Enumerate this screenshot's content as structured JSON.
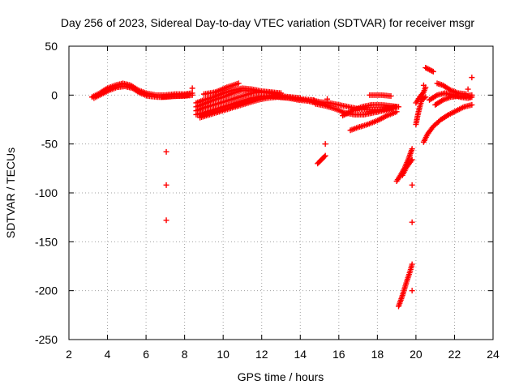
{
  "chart_data": {
    "type": "scatter",
    "title": "Day 256 of 2023, Sidereal Day-to-day VTEC variation (SDTVAR) for receiver msgr",
    "xlabel": "GPS time / hours",
    "ylabel": "SDTVAR / TECUs",
    "xlim": [
      2,
      24
    ],
    "ylim": [
      -250,
      50
    ],
    "xticks": [
      2,
      4,
      6,
      8,
      10,
      12,
      14,
      16,
      18,
      20,
      22,
      24
    ],
    "yticks": [
      -250,
      -200,
      -150,
      -100,
      -50,
      0,
      50
    ],
    "grid": true,
    "marker": "+",
    "series": [
      {
        "name": "SDTVAR",
        "color": "#ff0000",
        "tracks": [
          [
            [
              3.2,
              -2
            ],
            [
              3.6,
              2
            ],
            [
              4.0,
              7
            ],
            [
              4.4,
              10
            ],
            [
              4.8,
              12
            ],
            [
              5.2,
              10
            ],
            [
              5.6,
              5
            ],
            [
              6.0,
              2
            ],
            [
              6.5,
              0
            ],
            [
              7.0,
              0
            ],
            [
              7.5,
              1
            ],
            [
              8.0,
              1
            ],
            [
              8.4,
              2
            ]
          ],
          [
            [
              3.3,
              -3
            ],
            [
              3.7,
              1
            ],
            [
              4.1,
              5
            ],
            [
              4.5,
              8
            ],
            [
              4.9,
              9
            ],
            [
              5.3,
              7
            ],
            [
              5.7,
              2
            ],
            [
              6.1,
              -1
            ],
            [
              6.6,
              -2
            ],
            [
              7.0,
              -2
            ],
            [
              7.6,
              -1
            ],
            [
              8.2,
              0
            ]
          ],
          [
            [
              6.8,
              -2
            ],
            [
              7.4,
              -1
            ],
            [
              8.0,
              -1
            ],
            [
              8.4,
              0
            ]
          ],
          [
            [
              8.6,
              -8
            ],
            [
              9.0,
              -5
            ],
            [
              9.5,
              -2
            ],
            [
              10.0,
              2
            ],
            [
              10.5,
              5
            ],
            [
              11.0,
              7
            ],
            [
              11.5,
              6
            ],
            [
              12.0,
              4
            ],
            [
              12.5,
              3
            ],
            [
              13.0,
              2
            ]
          ],
          [
            [
              8.6,
              -12
            ],
            [
              9.0,
              -9
            ],
            [
              9.5,
              -5
            ],
            [
              10.0,
              -2
            ],
            [
              10.5,
              2
            ],
            [
              11.0,
              5
            ],
            [
              11.5,
              4
            ],
            [
              12.0,
              3
            ],
            [
              12.5,
              2
            ],
            [
              13.0,
              0
            ]
          ],
          [
            [
              8.6,
              -16
            ],
            [
              9.0,
              -13
            ],
            [
              9.5,
              -10
            ],
            [
              10.0,
              -7
            ],
            [
              10.5,
              -4
            ],
            [
              11.0,
              -1
            ],
            [
              11.5,
              2
            ],
            [
              12.0,
              3
            ],
            [
              12.5,
              2
            ],
            [
              13.0,
              -1
            ],
            [
              13.5,
              -2
            ],
            [
              14.0,
              -3
            ]
          ],
          [
            [
              8.6,
              -20
            ],
            [
              9.0,
              -18
            ],
            [
              9.5,
              -15
            ],
            [
              10.0,
              -12
            ],
            [
              10.5,
              -9
            ],
            [
              11.0,
              -6
            ],
            [
              11.5,
              -3
            ],
            [
              12.0,
              -1
            ],
            [
              12.5,
              -1
            ],
            [
              13.0,
              -2
            ],
            [
              13.5,
              -3
            ],
            [
              14.0,
              -4
            ],
            [
              14.6,
              -5
            ]
          ],
          [
            [
              8.8,
              -23
            ],
            [
              9.3,
              -20
            ],
            [
              9.8,
              -17
            ],
            [
              10.3,
              -14
            ],
            [
              10.8,
              -11
            ],
            [
              11.3,
              -8
            ],
            [
              11.8,
              -5
            ],
            [
              12.3,
              -3
            ],
            [
              12.8,
              -2
            ],
            [
              13.4,
              -3
            ],
            [
              13.9,
              -5
            ],
            [
              14.4,
              -6
            ],
            [
              14.8,
              -8
            ]
          ],
          [
            [
              9.0,
              1
            ],
            [
              9.6,
              3
            ],
            [
              10.2,
              8
            ],
            [
              10.8,
              12
            ]
          ],
          [
            [
              14.6,
              -5
            ],
            [
              15.0,
              -7
            ],
            [
              15.5,
              -8
            ],
            [
              16.0,
              -10
            ],
            [
              16.5,
              -12
            ],
            [
              17.0,
              -14
            ],
            [
              17.5,
              -15
            ],
            [
              18.0,
              -15
            ],
            [
              18.5,
              -14
            ],
            [
              19.0,
              -12
            ]
          ],
          [
            [
              14.8,
              -9
            ],
            [
              15.3,
              -11
            ],
            [
              15.8,
              -14
            ],
            [
              16.3,
              -18
            ],
            [
              16.8,
              -20
            ],
            [
              17.3,
              -20
            ],
            [
              17.8,
              -18
            ],
            [
              18.3,
              -16
            ],
            [
              18.8,
              -14
            ]
          ],
          [
            [
              16.2,
              -21
            ],
            [
              16.7,
              -16
            ],
            [
              17.2,
              -12
            ],
            [
              17.7,
              -10
            ],
            [
              18.2,
              -10
            ],
            [
              18.7,
              -11
            ],
            [
              19.1,
              -12
            ]
          ],
          [
            [
              16.6,
              -36
            ],
            [
              17.0,
              -33
            ],
            [
              17.5,
              -30
            ],
            [
              18.0,
              -26
            ],
            [
              18.5,
              -21
            ],
            [
              19.0,
              -17
            ]
          ],
          [
            [
              17.6,
              0
            ],
            [
              18.2,
              0
            ],
            [
              18.7,
              -1
            ]
          ],
          [
            [
              14.9,
              -70
            ],
            [
              15.1,
              -66
            ],
            [
              15.3,
              -62
            ]
          ],
          [
            [
              19.0,
              -88
            ],
            [
              19.2,
              -82
            ],
            [
              19.4,
              -75
            ],
            [
              19.6,
              -66
            ],
            [
              19.8,
              -55
            ]
          ],
          [
            [
              19.3,
              -82
            ],
            [
              19.5,
              -74
            ],
            [
              19.8,
              -66
            ]
          ],
          [
            [
              19.1,
              -216
            ],
            [
              19.3,
              -205
            ],
            [
              19.5,
              -192
            ],
            [
              19.7,
              -180
            ],
            [
              19.8,
              -173
            ]
          ],
          [
            [
              20.0,
              -30
            ],
            [
              20.1,
              -20
            ],
            [
              20.2,
              -12
            ],
            [
              20.3,
              -5
            ],
            [
              20.5,
              -2
            ]
          ],
          [
            [
              20.0,
              -8
            ],
            [
              20.2,
              -2
            ],
            [
              20.4,
              3
            ],
            [
              20.5,
              8
            ]
          ],
          [
            [
              20.5,
              28
            ],
            [
              20.7,
              26
            ],
            [
              20.9,
              24
            ]
          ],
          [
            [
              20.4,
              -48
            ],
            [
              20.6,
              -40
            ],
            [
              20.9,
              -32
            ],
            [
              21.3,
              -25
            ],
            [
              21.7,
              -20
            ],
            [
              22.1,
              -16
            ],
            [
              22.5,
              -12
            ],
            [
              22.9,
              -10
            ]
          ],
          [
            [
              20.7,
              -5
            ],
            [
              21.1,
              0
            ],
            [
              21.5,
              2
            ],
            [
              21.9,
              0
            ],
            [
              22.3,
              -2
            ],
            [
              22.7,
              -3
            ],
            [
              22.9,
              -2
            ]
          ],
          [
            [
              21.0,
              -10
            ],
            [
              21.4,
              -5
            ],
            [
              21.8,
              -2
            ],
            [
              22.2,
              -1
            ],
            [
              22.6,
              -1
            ],
            [
              22.9,
              0
            ]
          ],
          [
            [
              21.1,
              12
            ],
            [
              21.4,
              10
            ],
            [
              21.8,
              5
            ],
            [
              22.2,
              2
            ],
            [
              22.6,
              1
            ]
          ]
        ],
        "points": [
          [
            7.05,
            -58
          ],
          [
            7.05,
            -92
          ],
          [
            7.05,
            -128
          ],
          [
            15.3,
            -50
          ],
          [
            19.8,
            -92
          ],
          [
            19.8,
            -130
          ],
          [
            19.8,
            -200
          ],
          [
            22.9,
            18
          ],
          [
            8.4,
            7
          ],
          [
            12.6,
            -1
          ],
          [
            14.7,
            -5
          ],
          [
            15.4,
            -4
          ],
          [
            20.4,
            10
          ],
          [
            22.7,
            6
          ]
        ]
      }
    ]
  }
}
